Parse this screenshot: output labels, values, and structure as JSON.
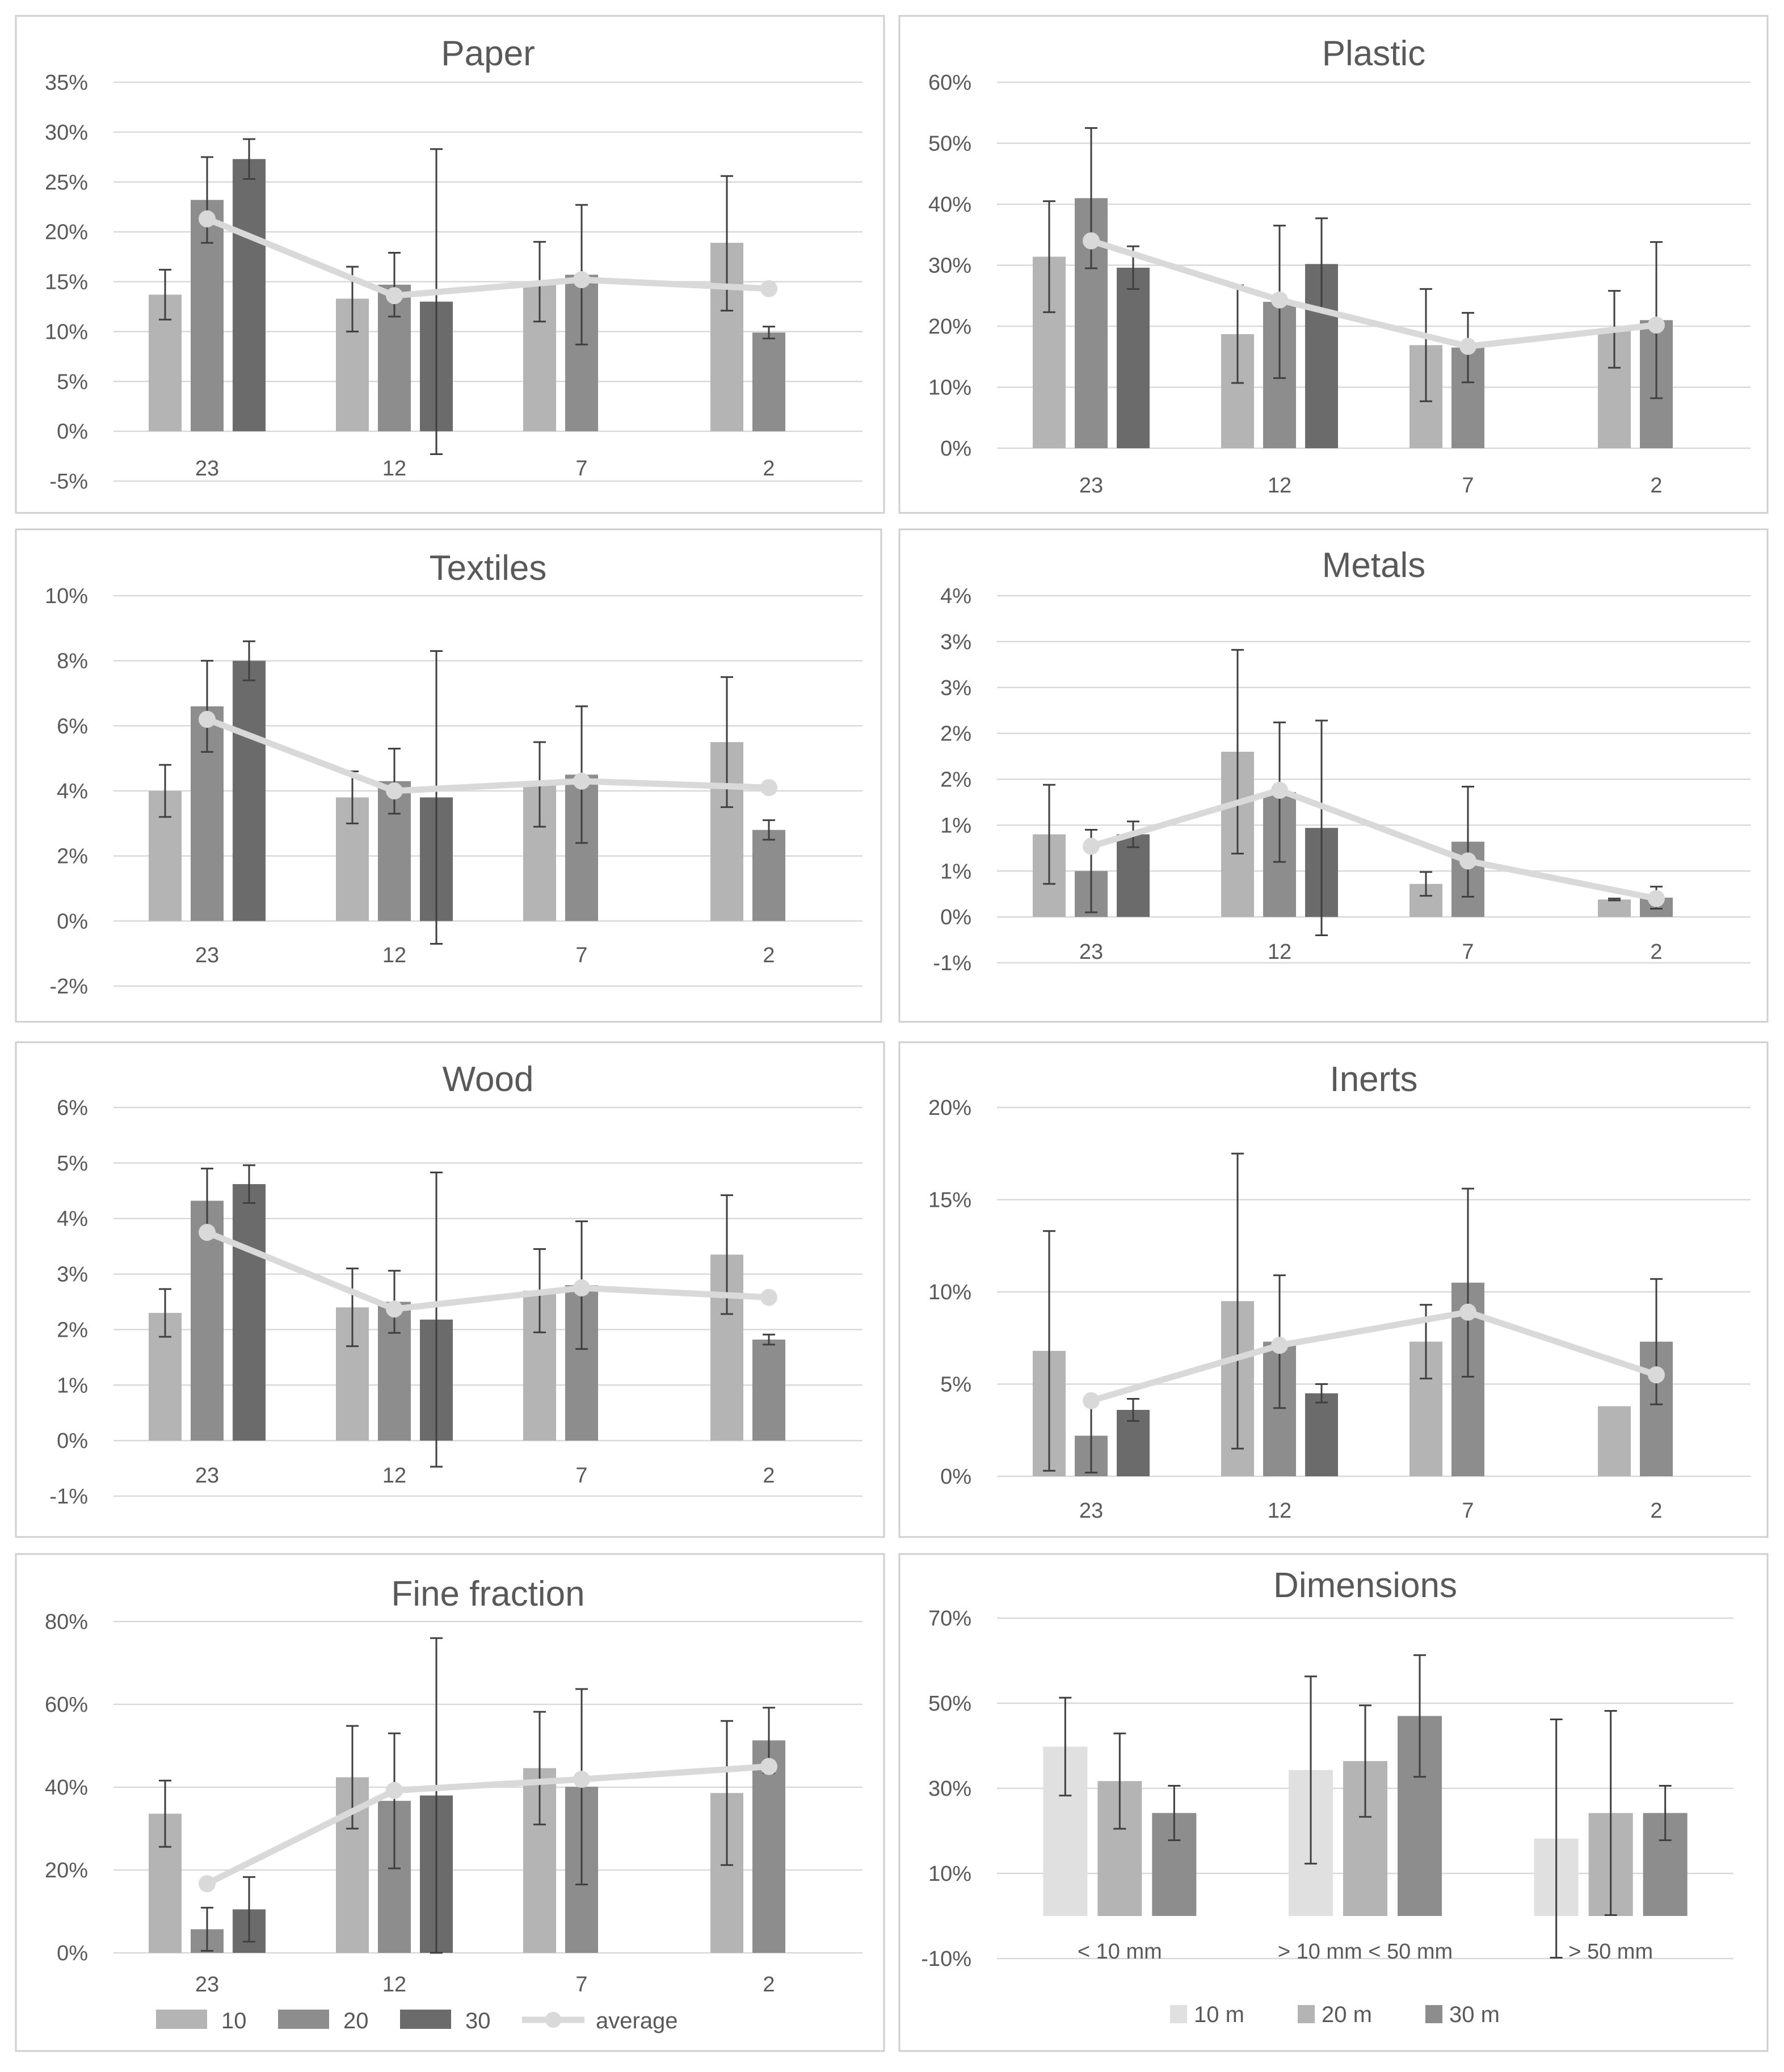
{
  "colors": {
    "s10": "#b4b4b4",
    "s20": "#8d8d8d",
    "s30": "#6b6b6b",
    "avg": "#d9d9d9",
    "d10m": "#e0e0e0",
    "d20m": "#b4b4b4",
    "d30m": "#8d8d8d"
  },
  "legend_main": [
    "10",
    "20",
    "30",
    "average"
  ],
  "legend_dim": [
    "10 m",
    "20 m",
    "30 m"
  ],
  "chart_data": [
    {
      "type": "bar",
      "title": "Paper",
      "categories": [
        "23",
        "12",
        "7",
        "2"
      ],
      "ylim": [
        -0.05,
        0.35
      ],
      "ystep": 0.05,
      "ytick_labels": [
        "-5%",
        "0%",
        "5%",
        "10%",
        "15%",
        "20%",
        "25%",
        "30%",
        "35%"
      ],
      "series": [
        {
          "name": "10",
          "values": [
            0.137,
            0.133,
            0.15,
            0.189
          ],
          "err_low": [
            0.025,
            0.033,
            0.04,
            0.068
          ],
          "err_high": [
            0.025,
            0.032,
            0.04,
            0.067
          ]
        },
        {
          "name": "20",
          "values": [
            0.232,
            0.147,
            0.157,
            0.099
          ],
          "err_low": [
            0.043,
            0.032,
            0.07,
            0.006
          ],
          "err_high": [
            0.043,
            0.032,
            0.07,
            0.006
          ]
        },
        {
          "name": "30",
          "values": [
            0.273,
            0.13,
            null,
            null
          ],
          "err_low": [
            0.02,
            0.153,
            null,
            null
          ],
          "err_high": [
            0.02,
            0.153,
            null,
            null
          ]
        }
      ],
      "average": [
        0.213,
        0.136,
        0.152,
        0.143
      ]
    },
    {
      "type": "bar",
      "title": "Plastic",
      "categories": [
        "23",
        "12",
        "7",
        "2"
      ],
      "ylim": [
        0,
        0.6
      ],
      "ystep": 0.1,
      "ytick_labels": [
        "0%",
        "10%",
        "20%",
        "30%",
        "40%",
        "50%",
        "60%"
      ],
      "series": [
        {
          "name": "10",
          "values": [
            0.314,
            0.187,
            0.169,
            0.195
          ],
          "err_low": [
            0.091,
            0.08,
            0.092,
            0.063
          ],
          "err_high": [
            0.091,
            0.08,
            0.092,
            0.063
          ]
        },
        {
          "name": "20",
          "values": [
            0.41,
            0.24,
            0.165,
            0.21
          ],
          "err_low": [
            0.115,
            0.125,
            0.057,
            0.128
          ],
          "err_high": [
            0.115,
            0.125,
            0.057,
            0.128
          ]
        },
        {
          "name": "30",
          "values": [
            0.296,
            0.302,
            null,
            null
          ],
          "err_low": [
            0.035,
            0.075,
            null,
            null
          ],
          "err_high": [
            0.035,
            0.075,
            null,
            null
          ]
        }
      ],
      "average": [
        0.34,
        0.243,
        0.167,
        0.202
      ]
    },
    {
      "type": "bar",
      "title": "Textiles",
      "categories": [
        "23",
        "12",
        "7",
        "2"
      ],
      "ylim": [
        -0.02,
        0.1
      ],
      "ystep": 0.02,
      "ytick_labels": [
        "-2%",
        "0%",
        "2%",
        "4%",
        "6%",
        "8%",
        "10%"
      ],
      "series": [
        {
          "name": "10",
          "values": [
            0.04,
            0.038,
            0.042,
            0.055
          ],
          "err_low": [
            0.008,
            0.008,
            0.013,
            0.02
          ],
          "err_high": [
            0.008,
            0.008,
            0.013,
            0.02
          ]
        },
        {
          "name": "20",
          "values": [
            0.066,
            0.043,
            0.045,
            0.028
          ],
          "err_low": [
            0.014,
            0.01,
            0.021,
            0.003
          ],
          "err_high": [
            0.014,
            0.01,
            0.021,
            0.003
          ]
        },
        {
          "name": "30",
          "values": [
            0.08,
            0.038,
            null,
            null
          ],
          "err_low": [
            0.006,
            0.045,
            null,
            null
          ],
          "err_high": [
            0.006,
            0.045,
            null,
            null
          ]
        }
      ],
      "average": [
        0.062,
        0.04,
        0.043,
        0.041
      ]
    },
    {
      "type": "bar",
      "title": "Metals",
      "categories": [
        "23",
        "12",
        "7",
        "2"
      ],
      "ylim": [
        -0.005,
        0.035
      ],
      "ystep": 0.005,
      "ytick_labels": [
        "-1%",
        "0%",
        "1%",
        "1%",
        "2%",
        "2%",
        "3%",
        "3%",
        "4%"
      ],
      "series": [
        {
          "name": "10",
          "values": [
            0.009,
            0.018,
            0.0036,
            0.0019
          ],
          "err_low": [
            0.0054,
            0.0111,
            0.0013,
            0.0001
          ],
          "err_high": [
            0.0054,
            0.0111,
            0.0013,
            0.0001
          ]
        },
        {
          "name": "20",
          "values": [
            0.005,
            0.0136,
            0.0082,
            0.0021
          ],
          "err_low": [
            0.0045,
            0.0076,
            0.006,
            0.0012
          ],
          "err_high": [
            0.0045,
            0.0076,
            0.006,
            0.0012
          ]
        },
        {
          "name": "30",
          "values": [
            0.009,
            0.0097,
            null,
            null
          ],
          "err_low": [
            0.0014,
            0.0117,
            null,
            null
          ],
          "err_high": [
            0.0014,
            0.0117,
            null,
            null
          ]
        }
      ],
      "average": [
        0.0077,
        0.0138,
        0.0061,
        0.002
      ]
    },
    {
      "type": "bar",
      "title": "Wood",
      "categories": [
        "23",
        "12",
        "7",
        "2"
      ],
      "ylim": [
        -0.01,
        0.06
      ],
      "ystep": 0.01,
      "ytick_labels": [
        "-1%",
        "0%",
        "1%",
        "2%",
        "3%",
        "4%",
        "5%",
        "6%"
      ],
      "series": [
        {
          "name": "10",
          "values": [
            0.023,
            0.024,
            0.027,
            0.0335
          ],
          "err_low": [
            0.0043,
            0.007,
            0.0075,
            0.0107
          ],
          "err_high": [
            0.0043,
            0.007,
            0.0075,
            0.0107
          ]
        },
        {
          "name": "20",
          "values": [
            0.0432,
            0.025,
            0.028,
            0.0182
          ],
          "err_low": [
            0.0058,
            0.0056,
            0.0115,
            0.0009
          ],
          "err_high": [
            0.0058,
            0.0056,
            0.0115,
            0.0009
          ]
        },
        {
          "name": "30",
          "values": [
            0.0462,
            0.0218,
            null,
            null
          ],
          "err_low": [
            0.0034,
            0.0265,
            null,
            null
          ],
          "err_high": [
            0.0034,
            0.0265,
            null,
            null
          ]
        }
      ],
      "average": [
        0.0375,
        0.0237,
        0.0275,
        0.0258
      ]
    },
    {
      "type": "bar",
      "title": "Inerts",
      "categories": [
        "23",
        "12",
        "7",
        "2"
      ],
      "ylim": [
        0,
        0.2
      ],
      "ystep": 0.05,
      "ytick_labels": [
        "0%",
        "5%",
        "10%",
        "15%",
        "20%"
      ],
      "series": [
        {
          "name": "10",
          "values": [
            0.068,
            0.095,
            0.073,
            0.038
          ],
          "err_low": [
            0.065,
            0.08,
            0.02,
            0.0
          ],
          "err_high": [
            0.065,
            0.08,
            0.02,
            0.0
          ]
        },
        {
          "name": "20",
          "values": [
            0.022,
            0.073,
            0.105,
            0.073
          ],
          "err_low": [
            0.02,
            0.036,
            0.051,
            0.034
          ],
          "err_high": [
            0.02,
            0.036,
            0.051,
            0.034
          ]
        },
        {
          "name": "30",
          "values": [
            0.036,
            0.045,
            null,
            null
          ],
          "err_low": [
            0.006,
            0.005,
            null,
            null
          ],
          "err_high": [
            0.006,
            0.005,
            null,
            null
          ]
        }
      ],
      "average": [
        0.041,
        0.071,
        0.089,
        0.055
      ]
    },
    {
      "type": "bar",
      "title": "Fine fraction",
      "categories": [
        "23",
        "12",
        "7",
        "2"
      ],
      "ylim": [
        0,
        0.8
      ],
      "ystep": 0.2,
      "ytick_labels": [
        "0%",
        "20%",
        "40%",
        "60%",
        "80%"
      ],
      "series": [
        {
          "name": "10",
          "values": [
            0.336,
            0.424,
            0.446,
            0.386
          ],
          "err_low": [
            0.08,
            0.124,
            0.136,
            0.174
          ],
          "err_high": [
            0.08,
            0.124,
            0.136,
            0.174
          ]
        },
        {
          "name": "20",
          "values": [
            0.057,
            0.367,
            0.401,
            0.513
          ],
          "err_low": [
            0.052,
            0.163,
            0.236,
            0.079
          ],
          "err_high": [
            0.052,
            0.163,
            0.236,
            0.079
          ]
        },
        {
          "name": "30",
          "values": [
            0.105,
            0.38,
            null,
            null
          ],
          "err_low": [
            0.078,
            0.38,
            null,
            null
          ],
          "err_high": [
            0.078,
            0.38,
            null,
            null
          ]
        }
      ],
      "average": [
        0.167,
        0.392,
        0.419,
        0.45
      ]
    },
    {
      "type": "bar",
      "title": "Dimensions",
      "categories": [
        "< 10 mm",
        "> 10 mm < 50 mm",
        "> 50 mm"
      ],
      "ylim": [
        -0.1,
        0.7
      ],
      "ystep": 0.2,
      "ytick_labels": [
        "-10%",
        "10%",
        "30%",
        "50%",
        "70%"
      ],
      "series": [
        {
          "name": "10 m",
          "values": [
            0.398,
            0.343,
            0.182
          ],
          "err_low": [
            0.115,
            0.22,
            0.28
          ],
          "err_high": [
            0.115,
            0.22,
            0.28
          ]
        },
        {
          "name": "20 m",
          "values": [
            0.317,
            0.364,
            0.242
          ],
          "err_low": [
            0.112,
            0.131,
            0.24
          ],
          "err_high": [
            0.112,
            0.131,
            0.24
          ]
        },
        {
          "name": "30 m",
          "values": [
            0.242,
            0.47,
            0.242
          ],
          "err_low": [
            0.064,
            0.143,
            0.064
          ],
          "err_high": [
            0.064,
            0.143,
            0.064
          ]
        }
      ]
    }
  ]
}
